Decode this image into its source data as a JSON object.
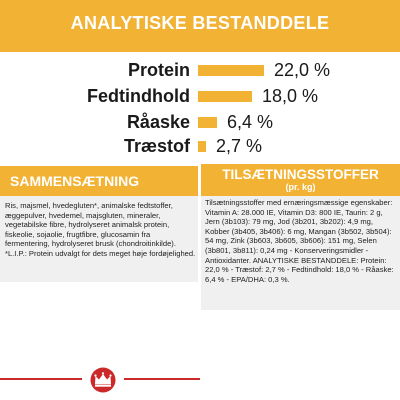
{
  "header": {
    "title": "ANALYTISKE BESTANDDELE"
  },
  "analysis": [
    {
      "label": "Protein",
      "value": "22,0 %",
      "amount": 22.0
    },
    {
      "label": "Fedtindhold",
      "value": "18,0 %",
      "amount": 18.0
    },
    {
      "label": "Råaske",
      "value": "6,4 %",
      "amount": 6.4
    },
    {
      "label": "Træstof",
      "value": "2,7 %",
      "amount": 2.7
    }
  ],
  "composition": {
    "heading": "SAMMENSÆTNING",
    "text": "Ris, majsmel, hvedegluten*, animalske fedtstoffer, æggepulver, hvedemel, majsgluten, mineraler, vegetabilske fibre, hydrolyseret animalsk protein, fiskeolie, sojaolie, frugtfibre, glucosamin fra fermentering, hydrolyseret brusk (chondroitinkilde). *L.I.P.: Protein udvalgt for dets meget høje fordøjelighed."
  },
  "additives": {
    "heading": "TILSÆTNINGSSTOFFER",
    "subheading": "(pr. kg)",
    "text": "Tilsætningsstoffer med ernæringsmæssige egenskaber: Vitamin A: 28.000 IE, Vitamin D3: 800 IE, Taurin: 2 g, Jern (3b103): 79 mg, Jod (3b201, 3b202): 4,9 mg, Kobber (3b405, 3b406): 6 mg, Mangan (3b502, 3b504): 54 mg, Zink (3b603, 3b605, 3b606): 151 mg, Selen (3b801, 3b811): 0,24 mg - Konserveringsmidler - Antioxidanter. ANALYTISKE BESTANDDELE: Protein: 22,0 % - Træstof: 2,7 % - Fedtindhold: 18,0 % - Råaske: 6,4 % - EPA/DHA: 0,3 %."
  },
  "colors": {
    "accent": "#f2b233",
    "panel": "#f0f0f0",
    "logo": "#cc2a2a"
  },
  "logo": {
    "icon": "royal-canin-crown-icon"
  }
}
